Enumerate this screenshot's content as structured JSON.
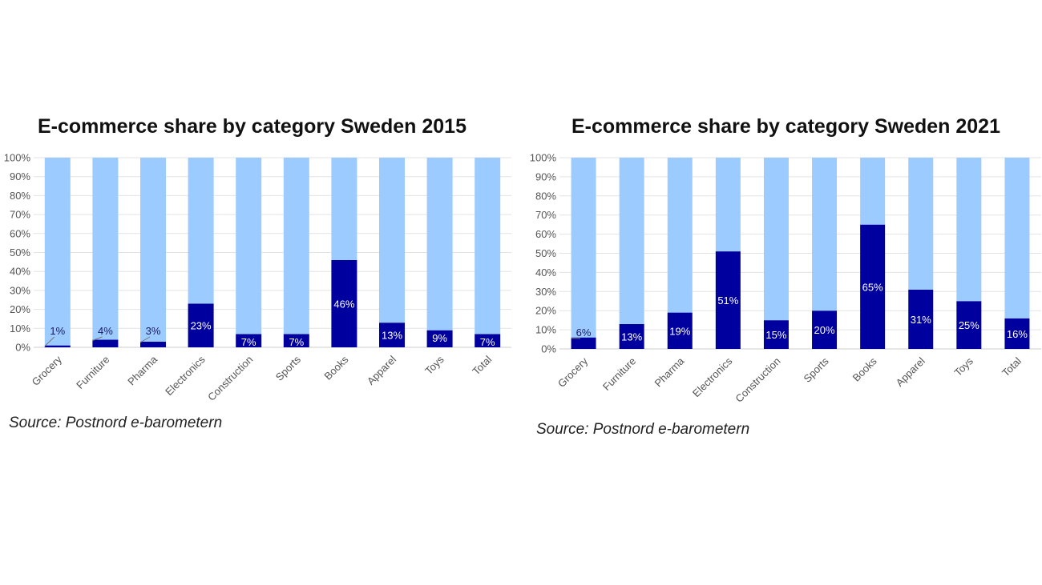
{
  "chart_data": [
    {
      "type": "bar",
      "stacked": true,
      "title": "E-commerce share by category Sweden 2015",
      "source": "Source: Postnord e-barometern",
      "categories": [
        "Grocery",
        "Furniture",
        "Pharma",
        "Electronics",
        "Construction",
        "Sports",
        "Books",
        "Apparel",
        "Toys",
        "Total"
      ],
      "series": [
        {
          "values": [
            1,
            4,
            3,
            23,
            7,
            7,
            46,
            13,
            9,
            7
          ],
          "color": "#00009e"
        },
        {
          "values": [
            99,
            96,
            97,
            77,
            93,
            93,
            54,
            87,
            91,
            93
          ],
          "color": "#9ccbff"
        }
      ],
      "data_labels": [
        "1%",
        "4%",
        "3%",
        "23%",
        "7%",
        "7%",
        "46%",
        "13%",
        "9%",
        "7%"
      ],
      "y_ticks": [
        "0%",
        "10%",
        "20%",
        "30%",
        "40%",
        "50%",
        "60%",
        "70%",
        "80%",
        "90%",
        "100%"
      ],
      "ylim": [
        0,
        100
      ],
      "grid": true,
      "legend": "none"
    },
    {
      "type": "bar",
      "stacked": true,
      "title": "E-commerce share by category Sweden 2021",
      "source": "Source: Postnord e-barometern",
      "categories": [
        "Grocery",
        "Furniture",
        "Pharma",
        "Electronics",
        "Construction",
        "Sports",
        "Books",
        "Apparel",
        "Toys",
        "Total"
      ],
      "series": [
        {
          "values": [
            6,
            13,
            19,
            51,
            15,
            20,
            65,
            31,
            25,
            16
          ],
          "color": "#00009e"
        },
        {
          "values": [
            94,
            87,
            81,
            49,
            85,
            80,
            35,
            69,
            75,
            84
          ],
          "color": "#9ccbff"
        }
      ],
      "data_labels": [
        "6%",
        "13%",
        "19%",
        "51%",
        "15%",
        "20%",
        "65%",
        "31%",
        "25%",
        "16%"
      ],
      "y_ticks": [
        "0%",
        "10%",
        "20%",
        "30%",
        "40%",
        "50%",
        "60%",
        "70%",
        "80%",
        "90%",
        "100%"
      ],
      "ylim": [
        0,
        100
      ],
      "grid": true,
      "legend": "none"
    }
  ]
}
